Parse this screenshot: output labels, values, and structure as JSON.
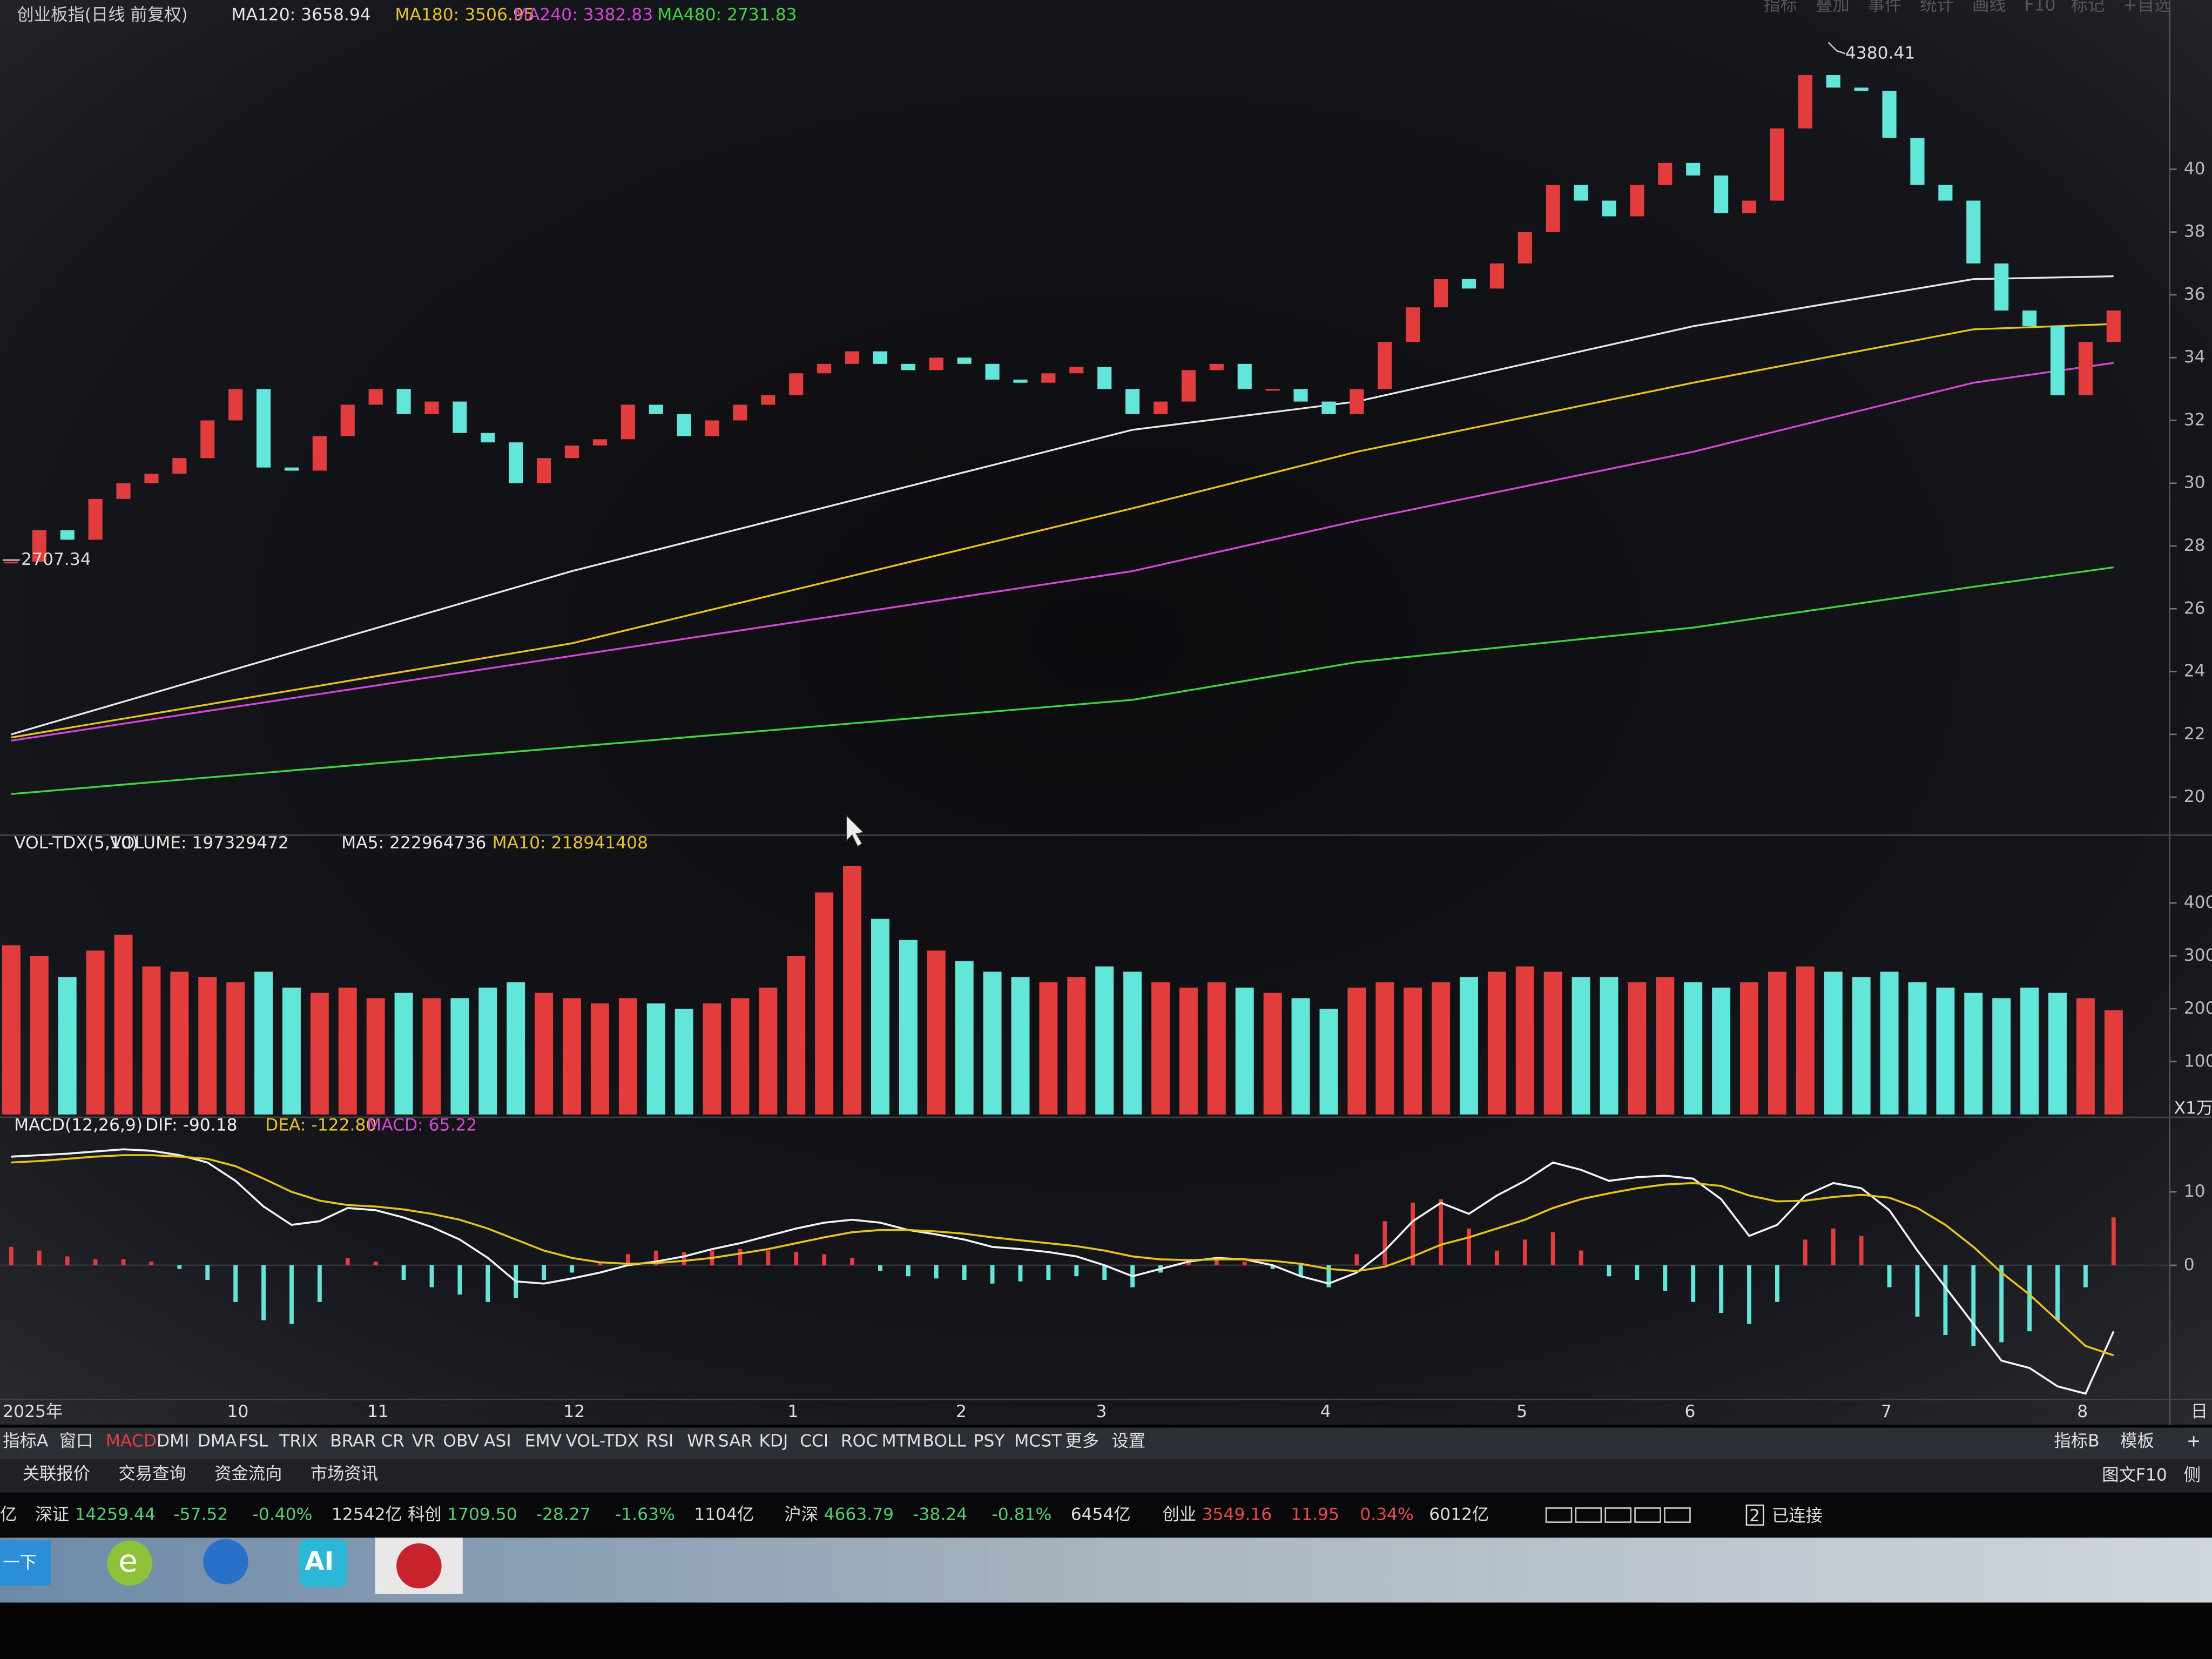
{
  "header": {
    "title": "创业板指(日线 前复权)",
    "ma": [
      "MA120: 3658.94",
      "MA180: 3506.95",
      "MA240: 3382.83",
      "MA480: 2731.83"
    ],
    "menu": [
      "指标",
      "叠加",
      "事件",
      "统计",
      "画线",
      "F10",
      "标记",
      "+自选"
    ]
  },
  "chart_data": [
    {
      "type": "candlestick",
      "categories": [
        "2025年",
        null,
        null,
        null,
        null,
        null,
        null,
        null,
        "10",
        null,
        null,
        null,
        null,
        "11",
        null,
        null,
        null,
        null,
        null,
        null,
        "12",
        null,
        null,
        null,
        null,
        null,
        null,
        null,
        "1",
        null,
        null,
        null,
        null,
        null,
        "2",
        null,
        null,
        null,
        null,
        "3",
        null,
        null,
        null,
        null,
        null,
        null,
        null,
        "4",
        null,
        null,
        null,
        null,
        null,
        null,
        "5",
        null,
        null,
        null,
        null,
        null,
        "6",
        null,
        null,
        null,
        null,
        null,
        null,
        "7",
        null,
        null,
        null,
        null,
        null,
        null,
        "8",
        null
      ],
      "x_end_label": "日",
      "values": [
        2750,
        2850,
        2820,
        2950,
        3000,
        3030,
        3080,
        3200,
        3300,
        3050,
        3040,
        3150,
        3250,
        3300,
        3220,
        3260,
        3160,
        3130,
        3000,
        3080,
        3120,
        3140,
        3250,
        3220,
        3150,
        3200,
        3250,
        3280,
        3350,
        3380,
        3420,
        3380,
        3360,
        3400,
        3380,
        3330,
        3320,
        3350,
        3370,
        3300,
        3220,
        3260,
        3360,
        3380,
        3300,
        3300,
        3260,
        3220,
        3300,
        3450,
        3560,
        3650,
        3620,
        3700,
        3800,
        3950,
        3900,
        3850,
        3950,
        4020,
        3980,
        3860,
        3900,
        4130,
        4300,
        4260,
        4250,
        4100,
        3950,
        3900,
        3700,
        3550,
        3500,
        3280,
        3450,
        3550
      ],
      "color_up": "#e23c3c",
      "color_down": "#62e6da",
      "ylim": [
        1888,
        4539
      ],
      "yticks": [
        {
          "value": 4000,
          "label": "40"
        },
        {
          "value": 3800,
          "label": "38"
        },
        {
          "value": 3600,
          "label": "36"
        },
        {
          "value": 3400,
          "label": "34"
        },
        {
          "value": 3200,
          "label": "32"
        },
        {
          "value": 3000,
          "label": "30"
        },
        {
          "value": 2800,
          "label": "28"
        },
        {
          "value": 2600,
          "label": "26"
        },
        {
          "value": 2400,
          "label": "24"
        },
        {
          "value": 2200,
          "label": "22"
        },
        {
          "value": 2000,
          "label": "20"
        }
      ],
      "annotations": [
        "4380.41",
        "2707.34"
      ],
      "series": [
        {
          "name": "MA120",
          "color": "#e6e6e6",
          "x": [
            0,
            20,
            40,
            48,
            60,
            70,
            75
          ],
          "values": [
            2200,
            2720,
            3170,
            3260,
            3500,
            3650,
            3659
          ]
        },
        {
          "name": "MA180",
          "color": "#e8c21c",
          "x": [
            0,
            20,
            40,
            48,
            60,
            70,
            75
          ],
          "values": [
            2190,
            2490,
            2920,
            3100,
            3320,
            3490,
            3507
          ]
        },
        {
          "name": "MA240",
          "color": "#d646d6",
          "x": [
            0,
            20,
            40,
            48,
            60,
            70,
            75
          ],
          "values": [
            2180,
            2450,
            2720,
            2880,
            3100,
            3320,
            3383
          ]
        },
        {
          "name": "MA480",
          "color": "#3fd43f",
          "x": [
            0,
            20,
            40,
            48,
            60,
            70,
            75
          ],
          "values": [
            2010,
            2160,
            2310,
            2430,
            2540,
            2670,
            2732
          ]
        }
      ]
    },
    {
      "type": "bar",
      "legend": [
        "VOL-TDX(5,10)",
        "VOLUME: 197329472",
        "MA5: 222964736",
        "MA10: 218941408"
      ],
      "values": [
        32000,
        30000,
        26000,
        31000,
        34000,
        28000,
        27000,
        26000,
        25000,
        27000,
        24000,
        23000,
        24000,
        22000,
        23000,
        22000,
        22000,
        24000,
        25000,
        23000,
        22000,
        21000,
        22000,
        21000,
        20000,
        21000,
        22000,
        24000,
        30000,
        42000,
        47000,
        37000,
        33000,
        31000,
        29000,
        27000,
        26000,
        25000,
        26000,
        28000,
        27000,
        25000,
        24000,
        25000,
        24000,
        23000,
        22000,
        20000,
        24000,
        25000,
        24000,
        25000,
        26000,
        27000,
        28000,
        27000,
        26000,
        26000,
        25000,
        26000,
        25000,
        24000,
        25000,
        27000,
        28000,
        27000,
        26000,
        27000,
        25000,
        24000,
        23000,
        22000,
        24000,
        23000,
        22000,
        19733
      ],
      "ylim": [
        0,
        50700
      ],
      "yticks": [
        {
          "value": 40000,
          "label": "400"
        },
        {
          "value": 30000,
          "label": "300"
        },
        {
          "value": 20000,
          "label": "200"
        },
        {
          "value": 10000,
          "label": "100"
        }
      ],
      "unit_label": "X1万"
    },
    {
      "type": "macd",
      "legend": [
        "MACD(12,26,9)",
        "DIF: -90.18",
        "DEA: -122.80",
        "MACD: 65.22"
      ],
      "values": [
        25,
        20,
        12,
        8,
        8,
        5,
        -5,
        -20,
        -50,
        -75,
        -80,
        -50,
        10,
        5,
        -20,
        -30,
        -40,
        -50,
        -45,
        -20,
        -10,
        5,
        15,
        20,
        18,
        20,
        22,
        20,
        18,
        15,
        10,
        -8,
        -15,
        -18,
        -20,
        -25,
        -22,
        -20,
        -15,
        -20,
        -30,
        -10,
        5,
        10,
        5,
        -5,
        -15,
        -30,
        15,
        60,
        85,
        90,
        50,
        20,
        35,
        45,
        20,
        -15,
        -20,
        -35,
        -50,
        -65,
        -80,
        -50,
        35,
        50,
        40,
        -30,
        -70,
        -95,
        -110,
        -105,
        -90,
        -75,
        -30,
        65.22
      ],
      "color_up": "#e23c3c",
      "color_down": "#62e6da",
      "series": [
        {
          "name": "DIF",
          "color": "#f2f2f2",
          "values": [
            148,
            150,
            152,
            155,
            158,
            156,
            150,
            140,
            115,
            80,
            55,
            60,
            78,
            75,
            65,
            52,
            35,
            10,
            -22,
            -25,
            -18,
            -10,
            0,
            5,
            12,
            22,
            30,
            40,
            50,
            58,
            62,
            58,
            48,
            42,
            35,
            25,
            22,
            18,
            12,
            0,
            -15,
            -5,
            5,
            10,
            8,
            0,
            -15,
            -25,
            -10,
            20,
            60,
            85,
            70,
            95,
            115,
            140,
            130,
            115,
            120,
            122,
            118,
            90,
            40,
            55,
            95,
            112,
            105,
            75,
            20,
            -30,
            -80,
            -130,
            -140,
            -165,
            -175,
            -90.18
          ]
        },
        {
          "name": "DEA",
          "color": "#e8c21c",
          "values": [
            140,
            142,
            145,
            148,
            150,
            150,
            148,
            145,
            135,
            118,
            100,
            88,
            82,
            80,
            76,
            70,
            62,
            50,
            35,
            20,
            10,
            4,
            2,
            3,
            6,
            10,
            16,
            22,
            30,
            38,
            45,
            48,
            48,
            46,
            43,
            38,
            34,
            30,
            26,
            20,
            12,
            8,
            7,
            8,
            8,
            6,
            2,
            -5,
            -8,
            -2,
            12,
            28,
            38,
            50,
            62,
            78,
            90,
            98,
            105,
            110,
            112,
            108,
            95,
            87,
            88,
            93,
            96,
            92,
            78,
            55,
            25,
            -10,
            -40,
            -75,
            -110,
            -122.8
          ]
        }
      ],
      "ylim": [
        -179,
        167
      ],
      "yticks": [
        {
          "value": 100,
          "label": "10"
        },
        0
      ]
    }
  ],
  "tabs": {
    "left": [
      "指标A",
      "窗口",
      "MACD",
      "DMI",
      "DMA",
      "FSL",
      "TRIX",
      "BRAR",
      "CR",
      "VR",
      "OBV",
      "ASI",
      "EMV",
      "VOL-TDX",
      "RSI",
      "WR",
      "SAR",
      "KDJ",
      "CCI",
      "ROC",
      "MTM",
      "BOLL",
      "PSY",
      "MCST",
      "更多",
      "设置"
    ],
    "right": [
      "指标B",
      "模板",
      "+"
    ]
  },
  "links": {
    "left": [
      "关联报价",
      "交易查询",
      "资金流向",
      "市场资讯"
    ],
    "right": [
      "图文F10",
      "侧"
    ]
  },
  "status": {
    "lead": "亿",
    "groups": [
      {
        "name": "深证",
        "fields": [
          "14259.44",
          "-57.52",
          "-0.40%",
          "12542亿"
        ]
      },
      {
        "name": "科创",
        "fields": [
          "1709.50",
          "-28.27",
          "-1.63%",
          "1104亿"
        ]
      },
      {
        "name": "沪深",
        "fields": [
          "4663.79",
          "-38.24",
          "-0.81%",
          "6454亿"
        ]
      },
      {
        "name": "创业",
        "fields": [
          "3549.16",
          "11.95",
          "0.34%",
          "6012亿"
        ]
      }
    ],
    "conn_count": "2",
    "conn": "已连接"
  },
  "taskbar": {
    "start": "一下",
    "icons": [
      "e",
      "AI"
    ]
  }
}
